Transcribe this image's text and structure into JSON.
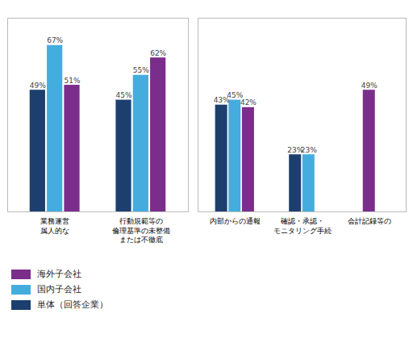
{
  "chart_data": [
    {
      "type": "bar",
      "categories": [
        "業務運営\n属人的な",
        "行動規範等の\n倫理基準の未整備\nまたは不徹底"
      ],
      "series": [
        {
          "name": "単体（回答企業）",
          "color": "#1C3F6E",
          "values": [
            49,
            45
          ],
          "value_labels": [
            "49%",
            "45%"
          ]
        },
        {
          "name": "国内子会社",
          "color": "#45ACDE",
          "values": [
            67,
            55
          ],
          "value_labels": [
            "67%",
            "55%"
          ]
        },
        {
          "name": "海外子会社",
          "color": "#7B2D8B",
          "values": [
            51,
            62
          ],
          "value_labels": [
            "51%",
            "62%"
          ]
        }
      ],
      "ylim": [
        0,
        78
      ],
      "yticks": [],
      "tick_labels": "x",
      "data_labels": true,
      "grid": false,
      "legend": "lower left"
    },
    {
      "type": "bar",
      "categories": [
        "内部からの通報",
        "確認・承認・\nモニタリング手続",
        "会計記録等の"
      ],
      "series": [
        {
          "name": "単体（回答企業）",
          "color": "#1C3F6E",
          "values": [
            43,
            23,
            null
          ],
          "value_labels": [
            "43%",
            "23%",
            null
          ]
        },
        {
          "name": "国内子会社",
          "color": "#45ACDE",
          "values": [
            45,
            23,
            null
          ],
          "value_labels": [
            "45%",
            "23%",
            null
          ]
        },
        {
          "name": "海外子会社",
          "color": "#7B2D8B",
          "values": [
            42,
            null,
            49
          ],
          "value_labels": [
            "42%",
            null,
            "49%"
          ]
        }
      ],
      "ylim": [
        0,
        78
      ],
      "yticks": [],
      "tick_labels": "x",
      "data_labels": true,
      "grid": false
    }
  ]
}
